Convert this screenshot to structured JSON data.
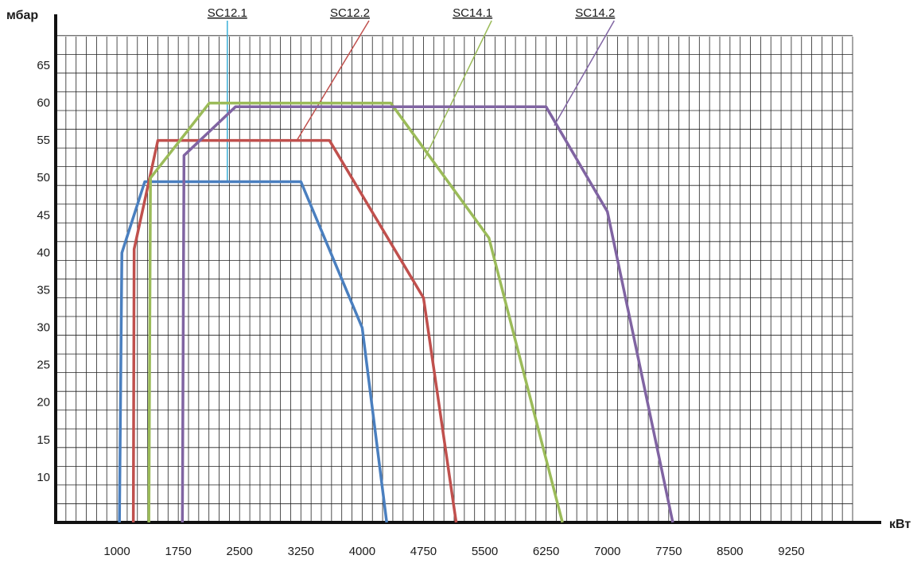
{
  "chart_data": {
    "type": "line",
    "title": "",
    "xlabel": "кВт",
    "ylabel": "мбар",
    "xlim": [
      250,
      10000
    ],
    "ylim": [
      5,
      72
    ],
    "x_ticks": [
      1000,
      1750,
      2500,
      3250,
      4000,
      4750,
      5500,
      6250,
      7000,
      7750,
      8500,
      9250
    ],
    "y_ticks": [
      10,
      15,
      20,
      25,
      30,
      35,
      40,
      45,
      50,
      55,
      60,
      65
    ],
    "grid": true,
    "legend": "top",
    "series": [
      {
        "name": "SC12.1",
        "color": "#4a7fbf",
        "label_at": 2350,
        "leader_end": [
          2350,
          50.5
        ],
        "points": [
          [
            1030,
            5
          ],
          [
            1060,
            41
          ],
          [
            1340,
            50.5
          ],
          [
            3250,
            50.5
          ],
          [
            4000,
            31
          ],
          [
            4300,
            5
          ]
        ]
      },
      {
        "name": "SC12.2",
        "color": "#c0504d",
        "label_at": 3850,
        "leader_end": [
          3200,
          56
        ],
        "points": [
          [
            1200,
            5
          ],
          [
            1210,
            41.5
          ],
          [
            1500,
            56
          ],
          [
            3600,
            56
          ],
          [
            4750,
            35
          ],
          [
            5150,
            5
          ]
        ]
      },
      {
        "name": "SC14.1",
        "color": "#9bbb59",
        "label_at": 5350,
        "leader_end": [
          4760,
          53.5
        ],
        "points": [
          [
            1390,
            5
          ],
          [
            1410,
            51
          ],
          [
            2130,
            61
          ],
          [
            4350,
            61
          ],
          [
            5550,
            43
          ],
          [
            6450,
            5
          ]
        ]
      },
      {
        "name": "SC14.2",
        "color": "#8064a2",
        "label_at": 6850,
        "leader_end": [
          6350,
          58
        ],
        "points": [
          [
            1800,
            5
          ],
          [
            1820,
            54
          ],
          [
            2450,
            60.5
          ],
          [
            6250,
            60.5
          ],
          [
            7000,
            46.5
          ],
          [
            7800,
            5
          ]
        ]
      }
    ]
  }
}
